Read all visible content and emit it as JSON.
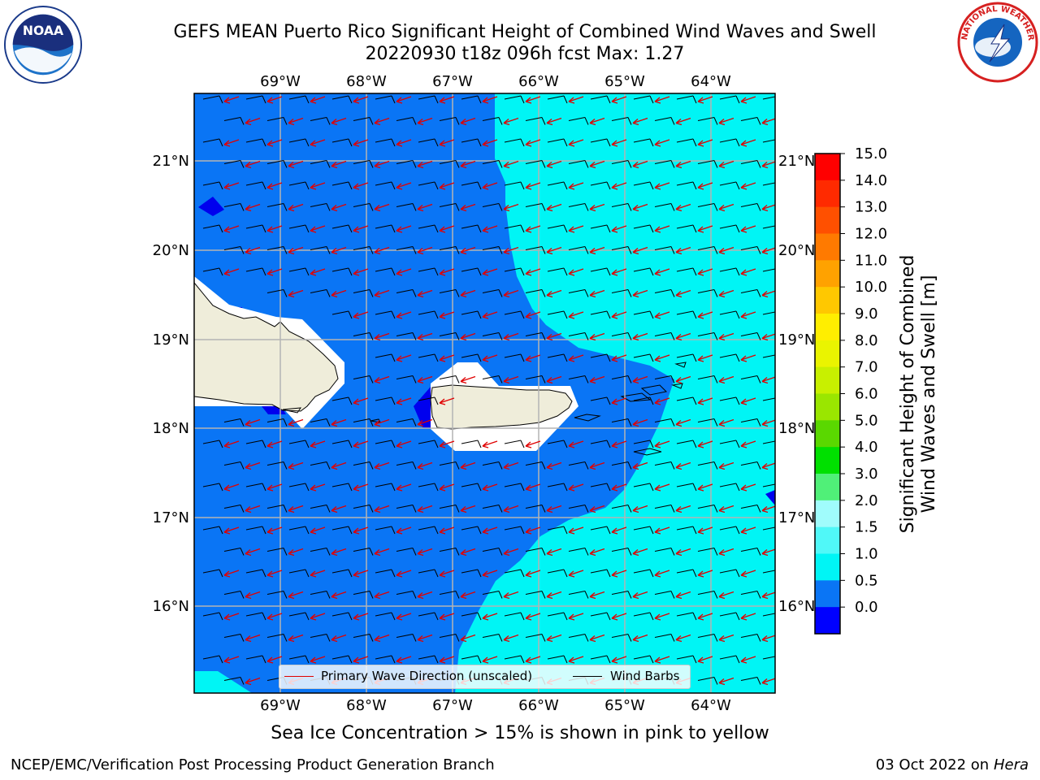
{
  "title": {
    "line1": "GEFS MEAN Puerto Rico Significant Height of Combined Wind Waves and Swell",
    "line2": "20220930 t18z 096h fcst   Max: 1.27"
  },
  "logos": {
    "left": "noaa-logo",
    "right": "nws-logo"
  },
  "map": {
    "region": "Puerto Rico",
    "lon_labels": [
      "69°W",
      "68°W",
      "67°W",
      "66°W",
      "65°W",
      "64°W"
    ],
    "lat_labels": [
      "21°N",
      "20°N",
      "19°N",
      "18°N",
      "17°N",
      "16°N"
    ],
    "grid": true,
    "colors": {
      "deep_blue": "#0000ee",
      "mid_blue": "#0a75f5",
      "cyan": "#00f5f5",
      "land": "#efedda"
    }
  },
  "legend": {
    "primary_wave_label": "Primary Wave Direction (unscaled)",
    "wind_barbs_label": "Wind Barbs"
  },
  "colorbar": {
    "label_line1": "Significant Height of Combined",
    "label_line2": "Wind Waves and Swell [m]",
    "ticks": [
      "15.0",
      "14.0",
      "13.0",
      "12.0",
      "11.0",
      "10.0",
      "9.0",
      "8.0",
      "7.0",
      "6.0",
      "5.0",
      "4.0",
      "3.0",
      "2.0",
      "1.5",
      "1.0",
      "0.5",
      "0.0"
    ],
    "bins": [
      {
        "color": "#ff0000"
      },
      {
        "color": "#ff2a00"
      },
      {
        "color": "#ff5000"
      },
      {
        "color": "#ff7a00"
      },
      {
        "color": "#ffa200"
      },
      {
        "color": "#ffc800"
      },
      {
        "color": "#ffee00"
      },
      {
        "color": "#eaf400"
      },
      {
        "color": "#c8f000"
      },
      {
        "color": "#9ae600"
      },
      {
        "color": "#5ad800"
      },
      {
        "color": "#00e000"
      },
      {
        "color": "#50f078"
      },
      {
        "color": "#a0fcfc"
      },
      {
        "color": "#50f8f8"
      },
      {
        "color": "#00f5f5"
      },
      {
        "color": "#0a75f5"
      },
      {
        "color": "#0000ff"
      }
    ]
  },
  "sea_ice_note": "Sea Ice Concentration > 15% is shown in pink to yellow",
  "footer": {
    "left": "NCEP/EMC/Verification Post Processing Product Generation Branch",
    "right_date": "03 Oct 2022 on ",
    "right_host": "Hera"
  }
}
